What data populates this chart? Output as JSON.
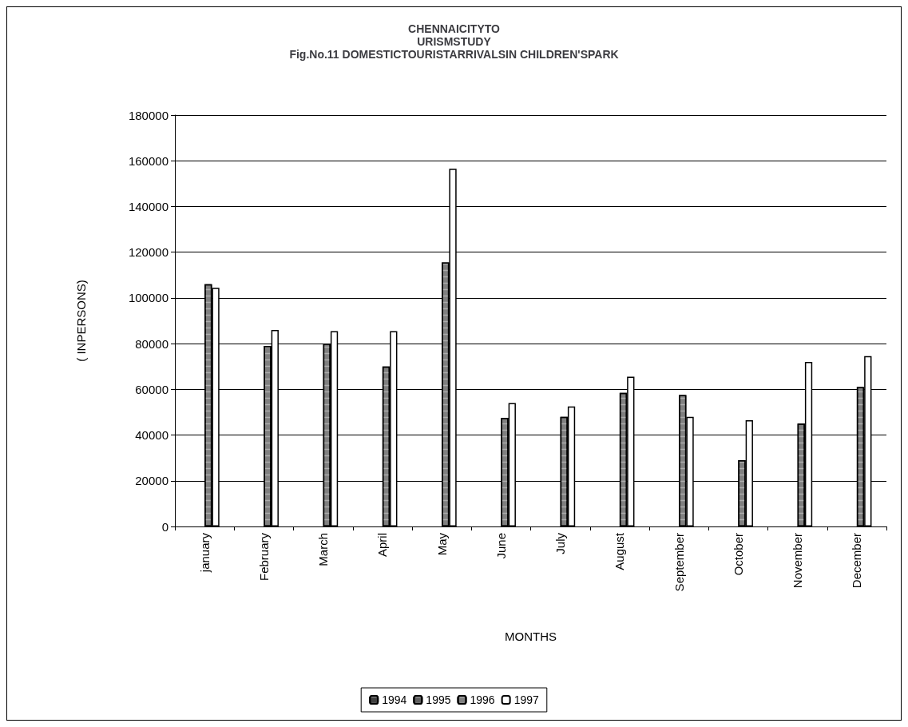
{
  "chart_data": {
    "type": "bar",
    "title": "CHENNAICITYTO\nURISMSTUDY\nFig.No.11 DOMESTICTOURISTARRIVALSIN CHILDREN'SPARK",
    "xlabel": "MONTHS",
    "ylabel": "( INPERSONS)",
    "categories": [
      "january",
      "February",
      "March",
      "April",
      "May",
      "June",
      "July",
      "August",
      "September",
      "October",
      "November",
      "December"
    ],
    "series": [
      {
        "name": "1994",
        "color": "#404040",
        "values": [
          null,
          null,
          null,
          null,
          null,
          null,
          null,
          null,
          null,
          null,
          null,
          null
        ]
      },
      {
        "name": "1995",
        "color": "#606060",
        "values": [
          null,
          null,
          null,
          null,
          null,
          null,
          null,
          null,
          null,
          null,
          null,
          null
        ]
      },
      {
        "name": "1996",
        "color": "#808080",
        "values": [
          106000,
          79000,
          80000,
          70000,
          115500,
          47500,
          48000,
          58500,
          57500,
          29000,
          45000,
          61000
        ]
      },
      {
        "name": "1997",
        "color": "#ffffff",
        "values": [
          104400,
          86000,
          85500,
          85500,
          156500,
          54000,
          52500,
          65500,
          48000,
          46500,
          72000,
          74500
        ]
      }
    ],
    "ylim": [
      0,
      180000
    ],
    "yticks": [
      0,
      20000,
      40000,
      60000,
      80000,
      100000,
      120000,
      140000,
      160000,
      180000
    ],
    "grid": "y",
    "legend": "bottom"
  }
}
